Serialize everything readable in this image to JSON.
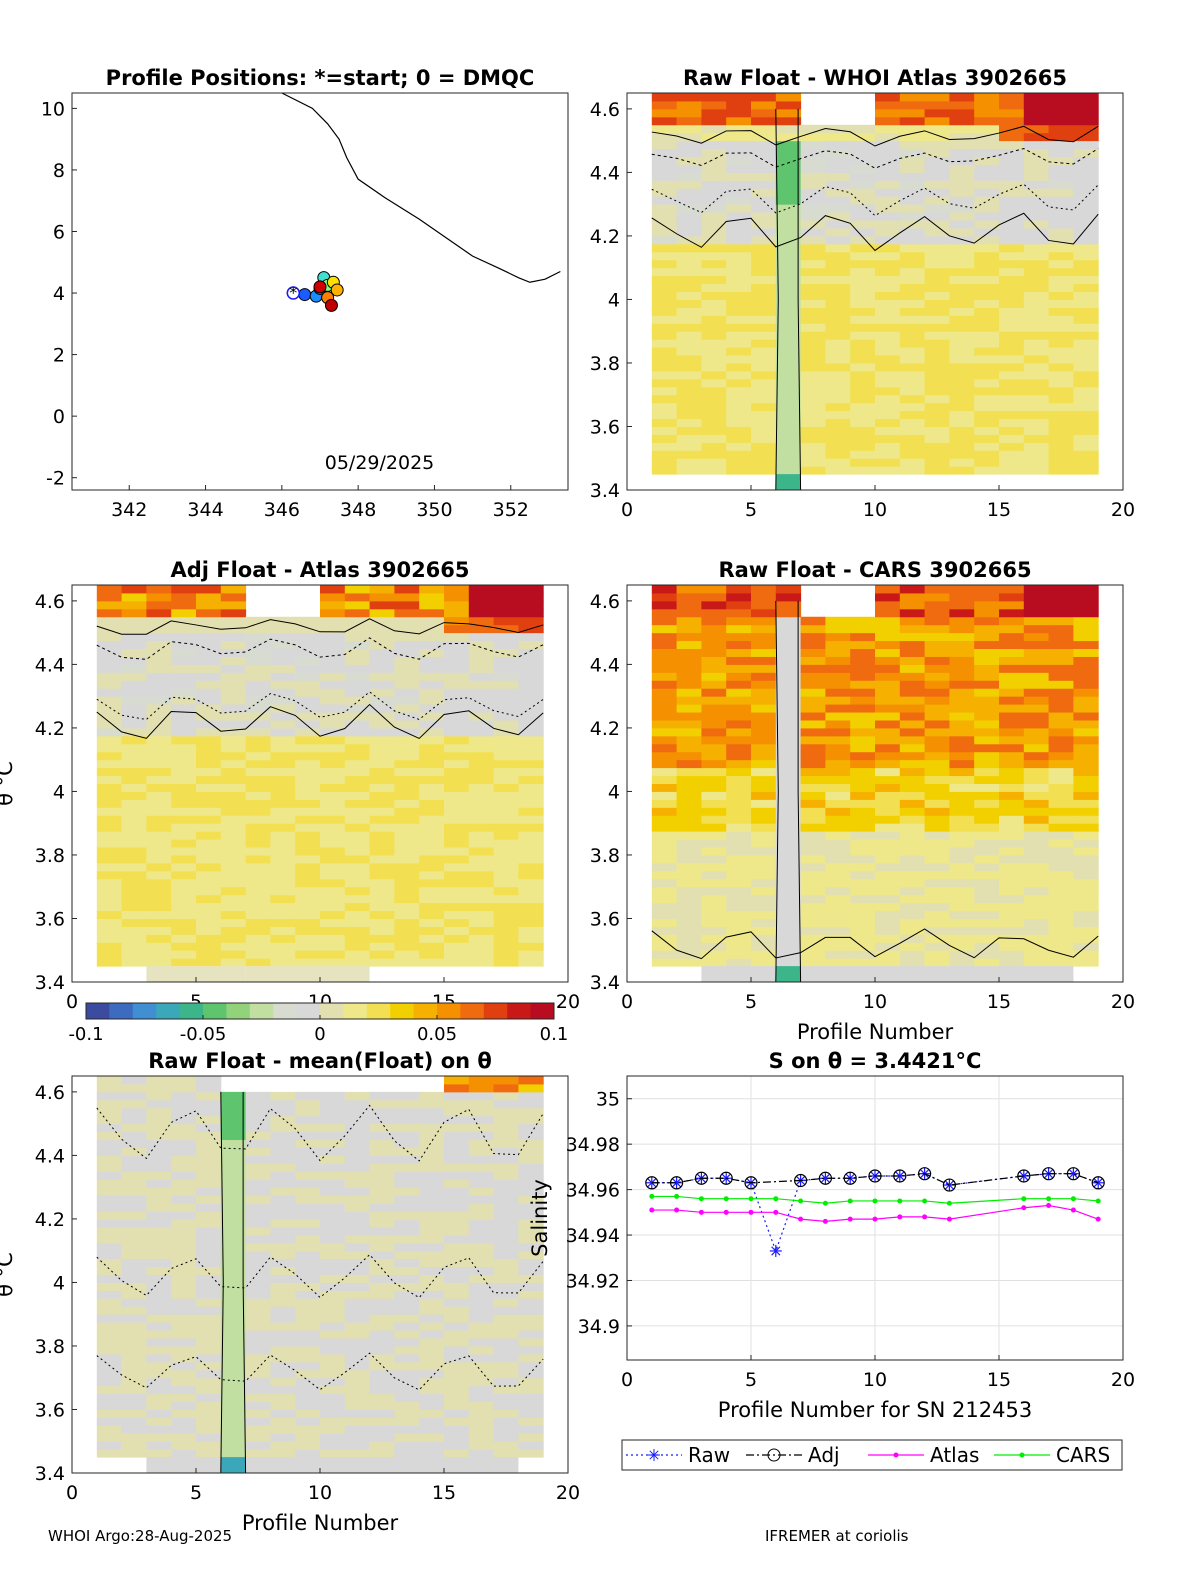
{
  "chart_data": [
    {
      "type": "map",
      "title": "Profile Positions: *=start; 0 = DMQC",
      "xlim": [
        340.5,
        353.5
      ],
      "ylim": [
        -2.4,
        10.5
      ],
      "xticks": [
        342,
        344,
        346,
        348,
        350,
        352
      ],
      "yticks": [
        -2,
        0,
        2,
        4,
        6,
        8,
        10
      ],
      "date_label": "05/29/2025",
      "coastline": [
        [
          346.0,
          10.5
        ],
        [
          346.8,
          10.0
        ],
        [
          347.2,
          9.5
        ],
        [
          347.5,
          9.0
        ],
        [
          347.7,
          8.4
        ],
        [
          348.0,
          7.7
        ],
        [
          348.7,
          7.1
        ],
        [
          349.6,
          6.4
        ],
        [
          350.3,
          5.8
        ],
        [
          351.0,
          5.2
        ],
        [
          351.7,
          4.8
        ],
        [
          352.2,
          4.5
        ],
        [
          352.5,
          4.35
        ],
        [
          352.9,
          4.45
        ],
        [
          353.3,
          4.7
        ]
      ],
      "start": [
        346.3,
        4.0
      ],
      "positions": [
        {
          "lon": 346.3,
          "lat": 4.0,
          "color": "#1a1aff"
        },
        {
          "lon": 346.6,
          "lat": 3.95,
          "color": "#1a5cff"
        },
        {
          "lon": 346.9,
          "lat": 3.9,
          "color": "#1a8cff"
        },
        {
          "lon": 347.0,
          "lat": 4.15,
          "color": "#00bfff"
        },
        {
          "lon": 347.1,
          "lat": 4.5,
          "color": "#40e0d0"
        },
        {
          "lon": 347.2,
          "lat": 4.25,
          "color": "#7fff7f"
        },
        {
          "lon": 347.35,
          "lat": 4.35,
          "color": "#ffe000"
        },
        {
          "lon": 347.45,
          "lat": 4.1,
          "color": "#ffb000"
        },
        {
          "lon": 347.2,
          "lat": 3.85,
          "color": "#ff8000"
        },
        {
          "lon": 347.0,
          "lat": 4.2,
          "color": "#d00000"
        },
        {
          "lon": 347.3,
          "lat": 3.6,
          "color": "#c00000"
        }
      ]
    },
    {
      "type": "heatmap",
      "title": "Raw Float - WHOI Atlas  3902665",
      "xlim": [
        0,
        20
      ],
      "ylim": [
        3.4,
        4.65
      ],
      "xticks": [
        0,
        5,
        10,
        15,
        20
      ],
      "yticks": [
        3.4,
        3.6,
        3.8,
        4,
        4.2,
        4.4,
        4.6
      ],
      "variant": "atlas_raw"
    },
    {
      "type": "heatmap",
      "title": "Adj Float - Atlas  3902665",
      "xlim": [
        0,
        20
      ],
      "ylim": [
        3.4,
        4.65
      ],
      "xticks": [
        0,
        5,
        10,
        15,
        20
      ],
      "yticks": [
        3.4,
        3.6,
        3.8,
        4,
        4.2,
        4.4,
        4.6
      ],
      "ylabel": "θ °C",
      "variant": "atlas_adj"
    },
    {
      "type": "heatmap",
      "title": "Raw Float - CARS  3902665",
      "xlim": [
        0,
        20
      ],
      "ylim": [
        3.4,
        4.65
      ],
      "xticks": [
        0,
        5,
        10,
        15,
        20
      ],
      "yticks": [
        3.4,
        3.6,
        3.8,
        4,
        4.2,
        4.4,
        4.6
      ],
      "xlabel": "Profile Number",
      "variant": "cars_raw"
    },
    {
      "type": "colorbar",
      "vmin": -0.1,
      "vmax": 0.1,
      "ticks": [
        "-0.1",
        "-0.05",
        "0",
        "0.05",
        "0.1"
      ],
      "colors": [
        "#3b4ba0",
        "#3d6bc0",
        "#3f8fd2",
        "#3aa8b8",
        "#3cb58a",
        "#5ec46e",
        "#92d27a",
        "#c0dfa0",
        "#d8dcd0",
        "#d8d8d8",
        "#e2e0b0",
        "#eee88a",
        "#f2e052",
        "#f2d000",
        "#f5b000",
        "#f59000",
        "#f06a10",
        "#e04010",
        "#c81818",
        "#b80c20"
      ]
    },
    {
      "type": "heatmap",
      "title": "Raw Float - mean(Float) on θ",
      "xlim": [
        0,
        20
      ],
      "ylim": [
        3.4,
        4.65
      ],
      "xticks": [
        0,
        5,
        10,
        15,
        20
      ],
      "yticks": [
        3.4,
        3.6,
        3.8,
        4,
        4.2,
        4.4,
        4.6
      ],
      "xlabel": "Profile Number",
      "ylabel": "θ °C",
      "variant": "mean"
    },
    {
      "type": "line",
      "title": "S on θ = 3.4421°C",
      "xlabel": "Profile Number for SN 212453",
      "ylabel": "Salinity",
      "xlim": [
        0,
        20
      ],
      "ylim": [
        34.885,
        35.01
      ],
      "xticks": [
        0,
        5,
        10,
        15,
        20
      ],
      "yticks": [
        34.9,
        34.92,
        34.94,
        34.96,
        34.98,
        35
      ],
      "ytick_labels": [
        "34.9",
        "34.92",
        "34.94",
        "34.96",
        "34.98",
        "35"
      ],
      "series": [
        {
          "name": "Raw",
          "color": "#1a1aff",
          "marker": "star",
          "dash": "dotted",
          "x": [
            1,
            2,
            3,
            4,
            5,
            6,
            7,
            8,
            9,
            10,
            11,
            12,
            13,
            16,
            17,
            18,
            19
          ],
          "y": [
            34.963,
            34.963,
            34.965,
            34.965,
            34.963,
            34.933,
            34.964,
            34.965,
            34.965,
            34.966,
            34.966,
            34.967,
            34.962,
            34.966,
            34.967,
            34.967,
            34.963
          ]
        },
        {
          "name": "Adj",
          "color": "#000000",
          "marker": "circle",
          "dash": "dashdot",
          "x": [
            1,
            2,
            3,
            4,
            5,
            7,
            8,
            9,
            10,
            11,
            12,
            13,
            16,
            17,
            18,
            19
          ],
          "y": [
            34.963,
            34.963,
            34.965,
            34.965,
            34.963,
            34.964,
            34.965,
            34.965,
            34.966,
            34.966,
            34.967,
            34.962,
            34.966,
            34.967,
            34.967,
            34.963
          ]
        },
        {
          "name": "Atlas",
          "color": "#ff00ff",
          "marker": "dot",
          "dash": "solid",
          "x": [
            1,
            2,
            3,
            4,
            5,
            6,
            7,
            8,
            9,
            10,
            11,
            12,
            13,
            16,
            17,
            18,
            19
          ],
          "y": [
            34.951,
            34.951,
            34.95,
            34.95,
            34.95,
            34.95,
            34.947,
            34.946,
            34.947,
            34.947,
            34.948,
            34.948,
            34.947,
            34.952,
            34.953,
            34.951,
            34.947
          ]
        },
        {
          "name": "CARS",
          "color": "#00ee00",
          "marker": "dot",
          "dash": "solid",
          "x": [
            1,
            2,
            3,
            4,
            5,
            6,
            7,
            8,
            9,
            10,
            11,
            12,
            13,
            16,
            17,
            18,
            19
          ],
          "y": [
            34.957,
            34.957,
            34.956,
            34.956,
            34.956,
            34.956,
            34.955,
            34.954,
            34.955,
            34.955,
            34.955,
            34.955,
            34.954,
            34.956,
            34.956,
            34.956,
            34.955
          ]
        }
      ],
      "legend_position": "bottom"
    }
  ],
  "footer": {
    "left": "WHOI Argo:28-Aug-2025",
    "right": "IFREMER at coriolis"
  }
}
